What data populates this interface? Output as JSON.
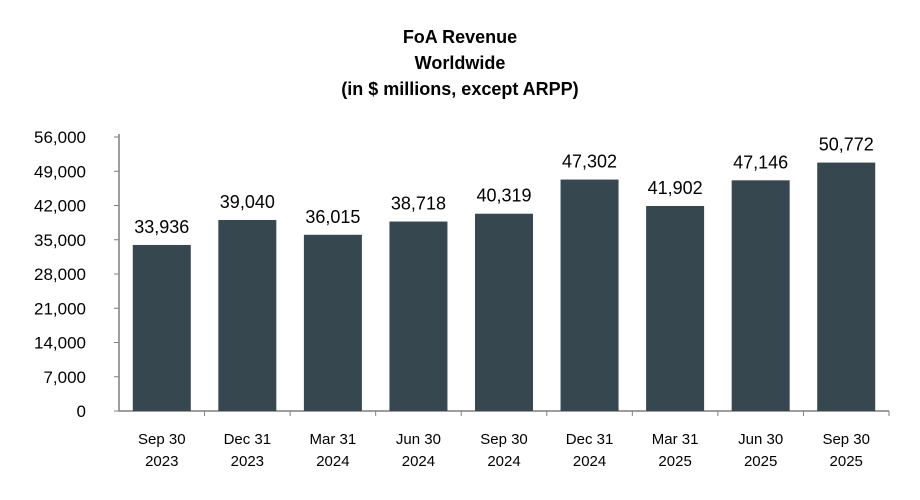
{
  "chart_data": {
    "type": "bar",
    "title_lines": [
      "FoA Revenue",
      "Worldwide",
      "(in $ millions, except ARPP)"
    ],
    "categories": [
      [
        "Sep 30",
        "2023"
      ],
      [
        "Dec 31",
        "2023"
      ],
      [
        "Mar 31",
        "2024"
      ],
      [
        "Jun 30",
        "2024"
      ],
      [
        "Sep 30",
        "2024"
      ],
      [
        "Dec 31",
        "2024"
      ],
      [
        "Mar 31",
        "2025"
      ],
      [
        "Jun 30",
        "2025"
      ],
      [
        "Sep 30",
        "2025"
      ]
    ],
    "values": [
      33936,
      39040,
      36015,
      38718,
      40319,
      47302,
      41902,
      47146,
      50772
    ],
    "data_labels": [
      "33,936",
      "39,040",
      "36,015",
      "38,718",
      "40,319",
      "47,302",
      "41,902",
      "47,146",
      "50,772"
    ],
    "yticks": [
      0,
      7000,
      14000,
      21000,
      28000,
      35000,
      42000,
      49000,
      56000
    ],
    "ytick_labels": [
      "0",
      "7,000",
      "14,000",
      "21,000",
      "28,000",
      "35,000",
      "42,000",
      "49,000",
      "56,000"
    ],
    "ylim": [
      0,
      56000
    ],
    "grid": false,
    "legend": "none",
    "bar_color": "#36474f",
    "axis_color": "#7f7f7f"
  }
}
